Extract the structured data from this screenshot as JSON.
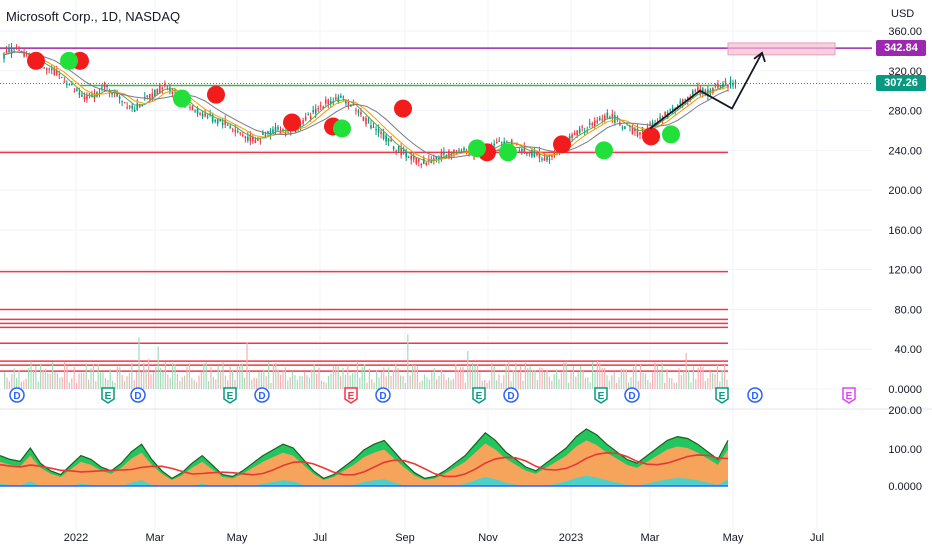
{
  "header": {
    "symbol_title": "Microsoft Corp., 1D, NASDAQ",
    "currency": "USD"
  },
  "price_tags": {
    "target": {
      "value": "342.84",
      "color": "#9c27b0"
    },
    "last": {
      "value": "307.26",
      "color": "#089981"
    }
  },
  "chart_data": {
    "type": "line",
    "series": [
      {
        "values": [
          336,
          342,
          336,
          330,
          326,
          318,
          312,
          300,
          292,
          296,
          303,
          298,
          289,
          282,
          290,
          298,
          305,
          299,
          288,
          280,
          276,
          270,
          268,
          260,
          254,
          250,
          255,
          262,
          258,
          262,
          270,
          280,
          288,
          292,
          290,
          282,
          270,
          262,
          252,
          242,
          236,
          230,
          228,
          232,
          236,
          240,
          238,
          234,
          240,
          246,
          250,
          244,
          238,
          236,
          232,
          240,
          250,
          258,
          262,
          268,
          276,
          270,
          262,
          258,
          262,
          270,
          276,
          285,
          292,
          300,
          298,
          305,
          307.26
        ]
      }
    ],
    "price_axis": [
      "360.00",
      "320.00",
      "280.00",
      "240.00",
      "200.00",
      "160.00",
      "120.00",
      "80.00",
      "40.00",
      "0.0000"
    ],
    "price_range": [
      0,
      360
    ],
    "lower_axis": [
      "200.00",
      "100.00",
      "0.0000"
    ],
    "lower_range": [
      0,
      200
    ],
    "time_axis": [
      "2022",
      "Mar",
      "May",
      "Jul",
      "Sep",
      "Nov",
      "2023",
      "Mar",
      "May",
      "Jul"
    ],
    "horizontal_levels": {
      "purple": [
        342.84
      ],
      "green": [
        307.26
      ],
      "red": [
        238,
        118,
        80,
        70,
        66,
        62,
        46,
        28,
        24,
        18
      ]
    },
    "signals_red": [
      {
        "x": 36,
        "y": 330
      },
      {
        "x": 80,
        "y": 330
      },
      {
        "x": 216,
        "y": 296
      },
      {
        "x": 292,
        "y": 268
      },
      {
        "x": 333,
        "y": 264
      },
      {
        "x": 403,
        "y": 282
      },
      {
        "x": 487,
        "y": 238
      },
      {
        "x": 562,
        "y": 246
      },
      {
        "x": 651,
        "y": 254
      }
    ],
    "signals_green": [
      {
        "x": 69,
        "y": 330
      },
      {
        "x": 182,
        "y": 292
      },
      {
        "x": 342,
        "y": 262
      },
      {
        "x": 477,
        "y": 242
      },
      {
        "x": 508,
        "y": 238
      },
      {
        "x": 604,
        "y": 240
      },
      {
        "x": 671,
        "y": 256
      }
    ],
    "projection": [
      {
        "x": 650,
        "y": 262
      },
      {
        "x": 700,
        "y": 300
      },
      {
        "x": 732,
        "y": 282
      },
      {
        "x": 762,
        "y": 338
      }
    ],
    "target_zone": {
      "y_low": 336,
      "y_high": 348
    },
    "events": [
      {
        "type": "D",
        "color": "#2962ff"
      },
      {
        "type": "E",
        "color": "#089981"
      },
      {
        "type": "D",
        "color": "#2962ff"
      },
      {
        "type": "E",
        "color": "#089981"
      },
      {
        "type": "D",
        "color": "#2962ff"
      },
      {
        "type": "E",
        "color": "#f23645"
      },
      {
        "type": "D",
        "color": "#2962ff"
      },
      {
        "type": "E",
        "color": "#089981"
      },
      {
        "type": "D",
        "color": "#2962ff"
      },
      {
        "type": "E",
        "color": "#089981"
      },
      {
        "type": "D",
        "color": "#2962ff"
      },
      {
        "type": "E",
        "color": "#089981"
      },
      {
        "type": "D",
        "color": "#2962ff"
      },
      {
        "type": "E",
        "color": "#e040fb"
      }
    ],
    "oscillator": [
      80,
      70,
      65,
      100,
      60,
      40,
      30,
      55,
      80,
      70,
      50,
      40,
      60,
      90,
      110,
      70,
      40,
      20,
      35,
      60,
      80,
      55,
      30,
      25,
      40,
      60,
      80,
      95,
      110,
      100,
      70,
      40,
      20,
      30,
      50,
      70,
      95,
      110,
      120,
      90,
      60,
      35,
      20,
      25,
      40,
      60,
      80,
      110,
      140,
      120,
      90,
      70,
      50,
      40,
      60,
      80,
      100,
      130,
      150,
      135,
      110,
      90,
      70,
      60,
      80,
      100,
      120,
      130,
      125,
      110,
      90,
      70,
      120
    ]
  }
}
